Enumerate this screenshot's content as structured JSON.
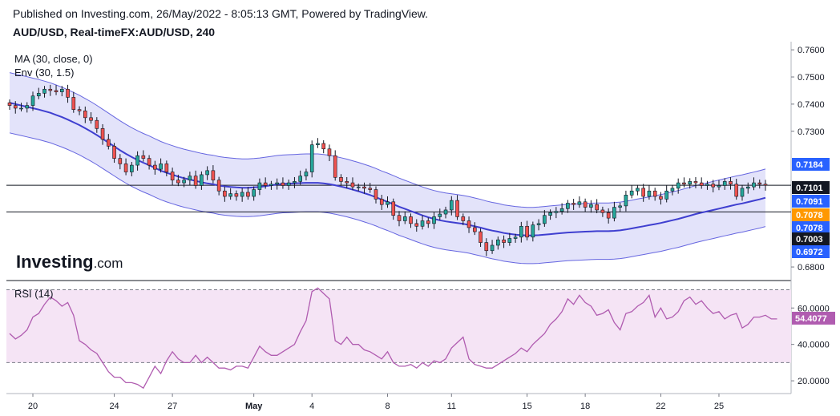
{
  "header": {
    "published": "Published on Investing.com, 26/May/2022 - 8:05:13 GMT, Powered by TradingView.",
    "symbol": "AUD/USD, Real-timeFX:AUD/USD, 240"
  },
  "logo": {
    "text": "Investing",
    "suffix": ".com"
  },
  "colors": {
    "up": "#26a69a",
    "down": "#ef5350",
    "ma": "#3f3fd0",
    "env_fill": "#e3e3fa",
    "env_line": "#6666e0",
    "rsi_line": "#b05cb0",
    "rsi_fill": "#f5e4f5",
    "badge_blue": "#2962ff",
    "badge_orange": "#ff9800",
    "badge_black": "#131722"
  },
  "chart_data": [
    {
      "type": "candlestick",
      "indicators": [
        "MA (30, close, 0)",
        "Env (30, 1.5)"
      ],
      "ylim": [
        0.675,
        0.763
      ],
      "y_ticks": [
        "0.7600",
        "0.7500",
        "0.7400",
        "0.7300",
        "0.6800"
      ],
      "x_ticks": [
        {
          "label": "20",
          "i": 4
        },
        {
          "label": "24",
          "i": 18
        },
        {
          "label": "27",
          "i": 28
        },
        {
          "label": "May",
          "i": 42
        },
        {
          "label": "4",
          "i": 52
        },
        {
          "label": "8",
          "i": 65
        },
        {
          "label": "11",
          "i": 76
        },
        {
          "label": "15",
          "i": 89
        },
        {
          "label": "18",
          "i": 99
        },
        {
          "label": "22",
          "i": 112
        },
        {
          "label": "25",
          "i": 122
        }
      ],
      "price_badges": [
        {
          "value": "0.7184",
          "color": "blue"
        },
        {
          "value": "0.7101",
          "color": "black"
        },
        {
          "value": "0.7091",
          "color": "blue"
        },
        {
          "value": "0.7078",
          "color": "orange"
        },
        {
          "value": "0.7078",
          "color": "blue"
        },
        {
          "value": "0.7003",
          "color": "black"
        },
        {
          "value": "0.6972",
          "color": "blue"
        }
      ],
      "h_lines": [
        0.7101,
        0.7003
      ],
      "closes": [
        0.7395,
        0.7385,
        0.7385,
        0.7395,
        0.743,
        0.744,
        0.7455,
        0.745,
        0.7445,
        0.7455,
        0.7425,
        0.738,
        0.7375,
        0.735,
        0.734,
        0.731,
        0.727,
        0.7245,
        0.72,
        0.718,
        0.715,
        0.7175,
        0.721,
        0.72,
        0.7175,
        0.716,
        0.718,
        0.715,
        0.712,
        0.711,
        0.712,
        0.7135,
        0.71,
        0.714,
        0.7155,
        0.712,
        0.708,
        0.706,
        0.707,
        0.706,
        0.7075,
        0.706,
        0.7085,
        0.711,
        0.71,
        0.7105,
        0.711,
        0.71,
        0.711,
        0.7115,
        0.7135,
        0.715,
        0.725,
        0.7255,
        0.7235,
        0.721,
        0.713,
        0.7115,
        0.711,
        0.7095,
        0.7095,
        0.709,
        0.7085,
        0.705,
        0.703,
        0.704,
        0.699,
        0.697,
        0.6985,
        0.696,
        0.695,
        0.697,
        0.696,
        0.6985,
        0.6995,
        0.701,
        0.7045,
        0.6985,
        0.697,
        0.6945,
        0.693,
        0.689,
        0.686,
        0.688,
        0.69,
        0.689,
        0.6905,
        0.691,
        0.695,
        0.691,
        0.6955,
        0.696,
        0.699,
        0.7,
        0.7005,
        0.7015,
        0.7035,
        0.703,
        0.704,
        0.702,
        0.703,
        0.701,
        0.7,
        0.698,
        0.702,
        0.7025,
        0.7065,
        0.708,
        0.709,
        0.706,
        0.708,
        0.706,
        0.705,
        0.708,
        0.709,
        0.711,
        0.7105,
        0.7115,
        0.711,
        0.71,
        0.7105,
        0.7095,
        0.71,
        0.7115,
        0.7105,
        0.706,
        0.709,
        0.7095,
        0.711,
        0.7105,
        0.7101
      ],
      "ma30": [
        0.7405,
        0.74,
        0.7395,
        0.739,
        0.7385,
        0.738,
        0.7374,
        0.7368,
        0.736,
        0.7352,
        0.7343,
        0.7333,
        0.7323,
        0.7311,
        0.7299,
        0.7286,
        0.7272,
        0.7258,
        0.7244,
        0.723,
        0.7217,
        0.7205,
        0.7194,
        0.7184,
        0.7175,
        0.7165,
        0.7155,
        0.7147,
        0.714,
        0.7133,
        0.7127,
        0.7122,
        0.7117,
        0.7112,
        0.7108,
        0.7105,
        0.71,
        0.7097,
        0.7095,
        0.7093,
        0.7092,
        0.7092,
        0.7093,
        0.7095,
        0.7098,
        0.7101,
        0.7104,
        0.7106,
        0.7107,
        0.7108,
        0.7109,
        0.711,
        0.711,
        0.711,
        0.7108,
        0.7105,
        0.7101,
        0.7096,
        0.7091,
        0.7085,
        0.7079,
        0.7072,
        0.7065,
        0.7057,
        0.7048,
        0.704,
        0.7031,
        0.7022,
        0.7014,
        0.7006,
        0.6998,
        0.699,
        0.6983,
        0.6977,
        0.6972,
        0.6968,
        0.6965,
        0.6962,
        0.6959,
        0.6955,
        0.695,
        0.6945,
        0.6939,
        0.6934,
        0.693,
        0.6925,
        0.6922,
        0.6919,
        0.6917,
        0.6916,
        0.6916,
        0.6917,
        0.6919,
        0.6921,
        0.6923,
        0.6925,
        0.6927,
        0.6928,
        0.6929,
        0.693,
        0.6931,
        0.6932,
        0.6932,
        0.6932,
        0.6933,
        0.6935,
        0.6938,
        0.6942,
        0.6946,
        0.695,
        0.6954,
        0.6958,
        0.6962,
        0.6967,
        0.6972,
        0.6977,
        0.6983,
        0.6989,
        0.6995,
        0.7,
        0.7005,
        0.701,
        0.7015,
        0.702,
        0.7025,
        0.703,
        0.7034,
        0.7039,
        0.7044,
        0.7049,
        0.7055
      ],
      "env_pct": 1.5
    },
    {
      "type": "line",
      "title": "RSI (14)",
      "ylim": [
        13,
        72
      ],
      "levels": [
        70,
        30
      ],
      "y_ticks": [
        "60.0000",
        "40.0000",
        "20.0000"
      ],
      "last_value": "54.4077",
      "values": [
        46,
        43,
        45,
        48,
        55,
        57,
        62,
        66,
        64,
        61,
        63,
        56,
        42,
        40,
        37,
        35,
        30,
        25,
        22,
        22,
        19,
        19,
        18,
        16,
        22,
        28,
        24,
        31,
        36,
        32,
        30,
        30,
        34,
        30,
        33,
        30,
        27,
        27,
        26,
        28,
        28,
        27,
        33,
        39,
        36,
        34,
        34,
        36,
        38,
        40,
        47,
        53,
        69,
        71,
        68,
        65,
        42,
        40,
        44,
        40,
        40,
        37,
        36,
        34,
        32,
        36,
        30,
        28,
        28,
        29,
        27,
        30,
        28,
        31,
        30,
        32,
        38,
        41,
        44,
        32,
        29,
        28,
        27,
        27,
        29,
        31,
        33,
        35,
        38,
        36,
        40,
        43,
        46,
        51,
        54,
        58,
        65,
        62,
        67,
        63,
        61,
        56,
        57,
        59,
        52,
        48,
        57,
        58,
        61,
        63,
        67,
        55,
        60,
        54,
        55,
        58,
        64,
        66,
        62,
        64,
        60,
        57,
        58,
        54,
        56,
        57,
        49,
        51,
        55,
        55,
        56,
        54,
        54
      ]
    }
  ]
}
